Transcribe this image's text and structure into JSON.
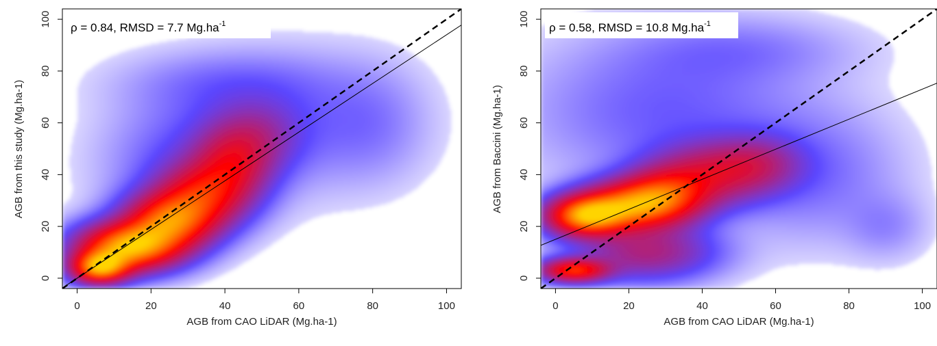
{
  "chart_data": [
    {
      "type": "scatter",
      "style": "smoothed density scatter",
      "xlabel": "AGB from CAO LiDAR (Mg.ha-1)",
      "ylabel": "AGB from this study (Mg.ha-1)",
      "xlim": [
        -4,
        104
      ],
      "ylim": [
        -4,
        104
      ],
      "xticks": [
        0,
        20,
        40,
        60,
        80,
        100
      ],
      "yticks": [
        0,
        20,
        40,
        60,
        80,
        100
      ],
      "annotation": {
        "text": "ρ = 0.84, RMSD = 7.7 Mg.ha",
        "superscript": "-1"
      },
      "lines": [
        {
          "name": "1:1",
          "style": "dashed",
          "intercept": 0,
          "slope": 1
        },
        {
          "name": "regression",
          "style": "solid",
          "intercept": 0,
          "slope": 0.94
        }
      ],
      "colormap": [
        "#ffffff",
        "#5a46ff",
        "#ff0000",
        "#ffd400"
      ],
      "density_blobs": [
        {
          "x": 14,
          "y": 12,
          "sx": 9,
          "sy": 6,
          "w": 1.0
        },
        {
          "x": 6,
          "y": 4,
          "sx": 5,
          "sy": 4,
          "w": 0.9
        },
        {
          "x": 25,
          "y": 22,
          "sx": 8,
          "sy": 7,
          "w": 0.75
        },
        {
          "x": 34,
          "y": 32,
          "sx": 8,
          "sy": 8,
          "w": 0.5
        },
        {
          "x": 42,
          "y": 44,
          "sx": 7,
          "sy": 9,
          "w": 0.35
        },
        {
          "x": 48,
          "y": 55,
          "sx": 8,
          "sy": 9,
          "w": 0.18
        },
        {
          "x": 30,
          "y": 45,
          "sx": 14,
          "sy": 16,
          "w": 0.1
        },
        {
          "x": 60,
          "y": 60,
          "sx": 18,
          "sy": 16,
          "w": 0.07
        },
        {
          "x": 40,
          "y": 75,
          "sx": 18,
          "sy": 8,
          "w": 0.06
        },
        {
          "x": 80,
          "y": 60,
          "sx": 9,
          "sy": 14,
          "w": 0.04
        }
      ]
    },
    {
      "type": "scatter",
      "style": "smoothed density scatter",
      "xlabel": "AGB from CAO LiDAR (Mg.ha-1)",
      "ylabel": "AGB from Baccini (Mg.ha-1)",
      "xlim": [
        -4,
        104
      ],
      "ylim": [
        -4,
        104
      ],
      "xticks": [
        0,
        20,
        40,
        60,
        80,
        100
      ],
      "yticks": [
        0,
        20,
        40,
        60,
        80,
        100
      ],
      "annotation": {
        "text": "ρ = 0.58, RMSD = 10.8 Mg.ha",
        "superscript": "-1"
      },
      "lines": [
        {
          "name": "1:1",
          "style": "dashed",
          "intercept": 0,
          "slope": 1
        },
        {
          "name": "regression",
          "style": "solid",
          "intercept": 15,
          "slope": 0.58
        }
      ],
      "colormap": [
        "#ffffff",
        "#5a46ff",
        "#ff0000",
        "#ffd400"
      ],
      "density_blobs": [
        {
          "x": 8,
          "y": 24,
          "sx": 7,
          "sy": 5,
          "w": 1.0
        },
        {
          "x": 20,
          "y": 28,
          "sx": 9,
          "sy": 6,
          "w": 0.8
        },
        {
          "x": 5,
          "y": 3,
          "sx": 6,
          "sy": 3,
          "w": 0.75
        },
        {
          "x": 30,
          "y": 32,
          "sx": 8,
          "sy": 7,
          "w": 0.6
        },
        {
          "x": 42,
          "y": 40,
          "sx": 10,
          "sy": 8,
          "w": 0.4
        },
        {
          "x": 55,
          "y": 44,
          "sx": 8,
          "sy": 7,
          "w": 0.25
        },
        {
          "x": 25,
          "y": 10,
          "sx": 12,
          "sy": 7,
          "w": 0.35
        },
        {
          "x": 30,
          "y": 65,
          "sx": 24,
          "sy": 18,
          "w": 0.1
        },
        {
          "x": 70,
          "y": 40,
          "sx": 15,
          "sy": 16,
          "w": 0.08
        },
        {
          "x": 50,
          "y": 88,
          "sx": 20,
          "sy": 8,
          "w": 0.06
        },
        {
          "x": 90,
          "y": 20,
          "sx": 7,
          "sy": 8,
          "w": 0.05
        }
      ]
    }
  ]
}
